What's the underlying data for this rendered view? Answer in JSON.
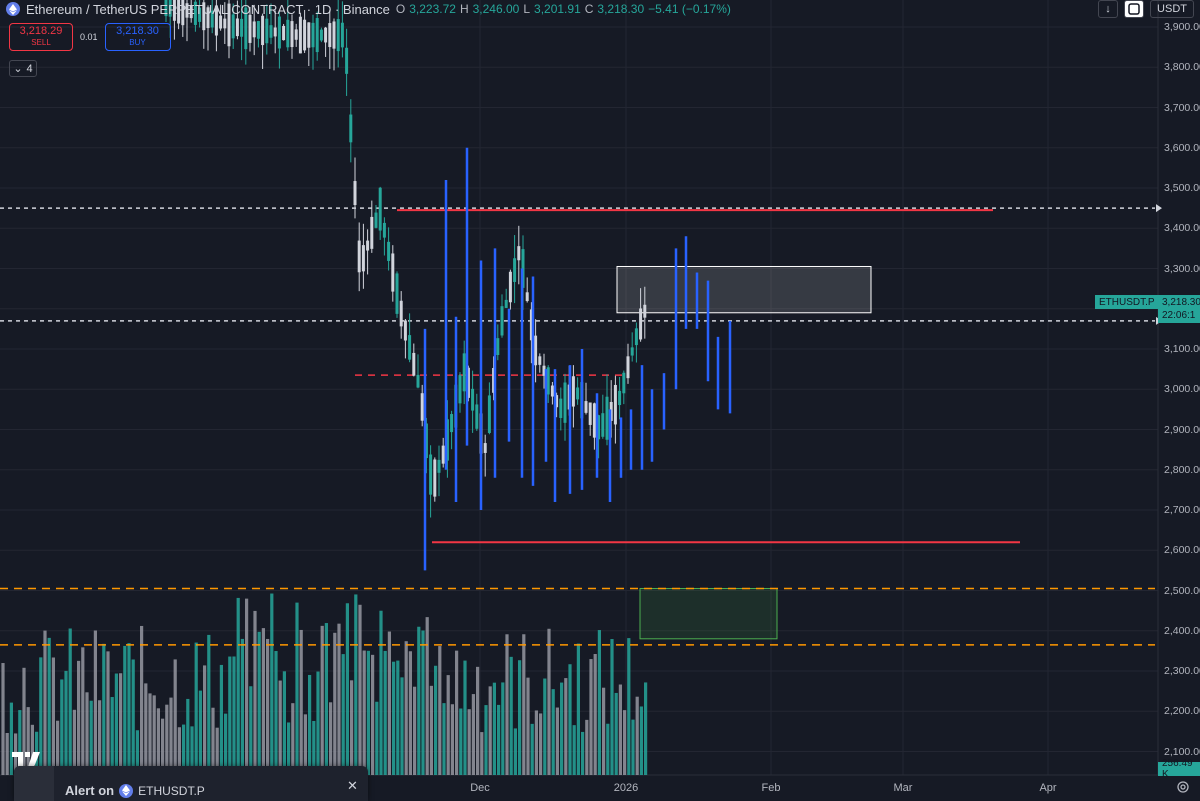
{
  "header": {
    "title": "Ethereum / TetherUS PERPETUAL CONTRACT · 1D · Binance",
    "ohlc": [
      {
        "k": "O",
        "v": "3,223.72"
      },
      {
        "k": "H",
        "v": "3,246.00"
      },
      {
        "k": "L",
        "v": "3,201.91"
      },
      {
        "k": "C",
        "v": "3,218.30"
      }
    ],
    "change": "−5.41 (−0.17%)"
  },
  "trade": {
    "sell_price": "3,218.29",
    "sell_label": "SELL",
    "spread": "0.01",
    "buy_price": "3,218.30",
    "buy_label": "BUY",
    "lots": "4"
  },
  "toolbar": {
    "currency": "USDT"
  },
  "price_axis": {
    "labels": [
      "3,900.00",
      "3,800.00",
      "3,700.00",
      "3,600.00",
      "3,500.00",
      "3,400.00",
      "3,300.00",
      "3,200.00",
      "3,100.00",
      "3,000.00",
      "2,900.00",
      "2,800.00",
      "2,700.00",
      "2,600.00",
      "2,500.00",
      "2,400.00",
      "2,300.00",
      "2,200.00",
      "2,100.00"
    ],
    "symbol_tag": "ETHUSDT.P",
    "last_price": "3,218.30",
    "countdown": "22:06:1",
    "volume_tag": "256.49 K"
  },
  "time_axis": {
    "labels": [
      "Dec",
      "2026",
      "Feb",
      "Mar",
      "Apr"
    ]
  },
  "alert": {
    "label": "Alert on",
    "symbol": "ETHUSDT.P"
  },
  "colors": {
    "background": "#161a25",
    "up": "#26a69a",
    "candle_white": "#d1d4dc",
    "projection": "#2962ff",
    "resistance": "#f23645",
    "fib": "#ff9800"
  },
  "chart_data": {
    "type": "candlestick",
    "symbol": "ETHUSDT.P",
    "ylim": [
      2050,
      3950
    ],
    "levels": [
      {
        "type": "solid",
        "price": 3445
      },
      {
        "type": "solid",
        "price": 2620
      },
      {
        "type": "dashed",
        "price": 3035
      },
      {
        "type": "dashed",
        "price": 2505
      },
      {
        "type": "dashed",
        "price": 2365
      },
      {
        "type": "dashed",
        "price": 3450
      },
      {
        "type": "dashed",
        "price": 3170
      }
    ],
    "zones": [
      {
        "price_low": 3190,
        "price_high": 3305
      },
      {
        "price_low": 2380,
        "price_high": 2505
      }
    ]
  }
}
